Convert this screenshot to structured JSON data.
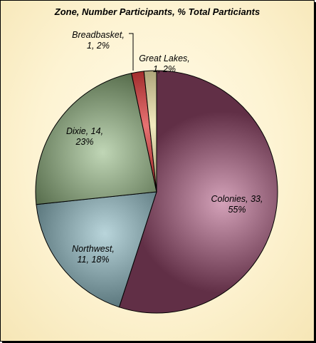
{
  "chart_data": {
    "type": "pie",
    "title": "Zone, Number Participants, % Total Particiants",
    "slices": [
      {
        "name": "Colonies",
        "value": 33,
        "percent": "55%",
        "label_line1": "Colonies, 33,",
        "label_line2": "55%",
        "color": "#b0567f"
      },
      {
        "name": "Northwest",
        "value": 11,
        "percent": "18%",
        "label_line1": "Northwest,",
        "label_line2": "11, 18%",
        "color": "#7fb3bd"
      },
      {
        "name": "Dixie",
        "value": 14,
        "percent": "23%",
        "label_line1": "Dixie, 14,",
        "label_line2": "23%",
        "color": "#8db57a"
      },
      {
        "name": "Breadbasket",
        "value": 1,
        "percent": "2%",
        "label_line1": "Breadbasket,",
        "label_line2": "1, 2%",
        "color": "#d40000"
      },
      {
        "name": "Great Lakes",
        "value": 1,
        "percent": "2%",
        "label_line1": "Great Lakes,",
        "label_line2": "1, 2%",
        "color": "#e8d98a"
      }
    ],
    "legend": "none"
  }
}
